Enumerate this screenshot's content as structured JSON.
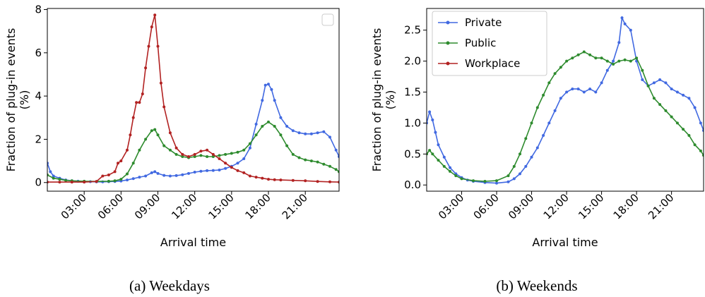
{
  "figure": {
    "captions": [
      "(a) Weekdays",
      "(b) Weekends"
    ]
  },
  "chart_data": [
    {
      "type": "line",
      "panel": "(a) Weekdays",
      "xlabel": "Arrival time",
      "ylabel": "Fraction of plug-in events",
      "ylabel_unit": "(%)",
      "xlim": [
        0,
        23.75
      ],
      "ylim": [
        -0.4,
        8.05
      ],
      "xticks": [
        3,
        6,
        9,
        12,
        15,
        18,
        21
      ],
      "xtick_labels": [
        "03:00",
        "06:00",
        "09:00",
        "12:00",
        "15:00",
        "18:00",
        "21:00"
      ],
      "yticks": [
        0,
        2,
        4,
        6,
        8
      ],
      "ytick_labels": [
        "0",
        "2",
        "4",
        "6",
        "8"
      ],
      "legend": {
        "placement": "top-right",
        "entries": []
      },
      "series": [
        {
          "name": "Private",
          "color": "#4169e1",
          "points": [
            [
              0,
              0.9
            ],
            [
              0.25,
              0.5
            ],
            [
              0.5,
              0.3
            ],
            [
              1,
              0.2
            ],
            [
              1.5,
              0.12
            ],
            [
              2,
              0.08
            ],
            [
              2.5,
              0.06
            ],
            [
              3,
              0.05
            ],
            [
              3.5,
              0.04
            ],
            [
              4,
              0.03
            ],
            [
              4.5,
              0.03
            ],
            [
              5,
              0.04
            ],
            [
              5.5,
              0.05
            ],
            [
              6,
              0.07
            ],
            [
              6.5,
              0.12
            ],
            [
              7,
              0.18
            ],
            [
              7.5,
              0.25
            ],
            [
              8,
              0.3
            ],
            [
              8.5,
              0.45
            ],
            [
              8.75,
              0.5
            ],
            [
              9,
              0.42
            ],
            [
              9.5,
              0.33
            ],
            [
              10,
              0.3
            ],
            [
              10.5,
              0.32
            ],
            [
              11,
              0.36
            ],
            [
              11.5,
              0.42
            ],
            [
              12,
              0.48
            ],
            [
              12.5,
              0.52
            ],
            [
              13,
              0.55
            ],
            [
              13.5,
              0.56
            ],
            [
              14,
              0.58
            ],
            [
              14.5,
              0.65
            ],
            [
              15,
              0.75
            ],
            [
              15.5,
              0.9
            ],
            [
              16,
              1.1
            ],
            [
              16.5,
              1.6
            ],
            [
              17,
              2.7
            ],
            [
              17.5,
              3.8
            ],
            [
              17.75,
              4.5
            ],
            [
              18,
              4.55
            ],
            [
              18.25,
              4.3
            ],
            [
              18.5,
              3.8
            ],
            [
              19,
              3.0
            ],
            [
              19.5,
              2.6
            ],
            [
              20,
              2.4
            ],
            [
              20.5,
              2.3
            ],
            [
              21,
              2.25
            ],
            [
              21.5,
              2.25
            ],
            [
              22,
              2.3
            ],
            [
              22.5,
              2.35
            ],
            [
              23,
              2.1
            ],
            [
              23.5,
              1.5
            ],
            [
              23.75,
              1.2
            ]
          ]
        },
        {
          "name": "Public",
          "color": "#2e8b2e",
          "points": [
            [
              0,
              0.35
            ],
            [
              0.5,
              0.2
            ],
            [
              1,
              0.15
            ],
            [
              1.5,
              0.1
            ],
            [
              2,
              0.08
            ],
            [
              3,
              0.06
            ],
            [
              4,
              0.05
            ],
            [
              5,
              0.06
            ],
            [
              5.5,
              0.08
            ],
            [
              6,
              0.15
            ],
            [
              6.5,
              0.4
            ],
            [
              7,
              0.9
            ],
            [
              7.5,
              1.5
            ],
            [
              8,
              2.0
            ],
            [
              8.5,
              2.4
            ],
            [
              8.75,
              2.45
            ],
            [
              9,
              2.2
            ],
            [
              9.5,
              1.7
            ],
            [
              10,
              1.5
            ],
            [
              10.5,
              1.3
            ],
            [
              11,
              1.2
            ],
            [
              11.5,
              1.15
            ],
            [
              12,
              1.2
            ],
            [
              12.5,
              1.25
            ],
            [
              13,
              1.2
            ],
            [
              13.5,
              1.2
            ],
            [
              14,
              1.25
            ],
            [
              14.5,
              1.3
            ],
            [
              15,
              1.35
            ],
            [
              15.5,
              1.4
            ],
            [
              16,
              1.5
            ],
            [
              16.5,
              1.8
            ],
            [
              17,
              2.2
            ],
            [
              17.5,
              2.6
            ],
            [
              18,
              2.8
            ],
            [
              18.5,
              2.6
            ],
            [
              19,
              2.2
            ],
            [
              19.5,
              1.7
            ],
            [
              20,
              1.3
            ],
            [
              20.5,
              1.15
            ],
            [
              21,
              1.05
            ],
            [
              21.5,
              1.0
            ],
            [
              22,
              0.95
            ],
            [
              22.5,
              0.85
            ],
            [
              23,
              0.75
            ],
            [
              23.5,
              0.6
            ],
            [
              23.75,
              0.5
            ]
          ]
        },
        {
          "name": "Workplace",
          "color": "#b22222",
          "points": [
            [
              0,
              0.02
            ],
            [
              1,
              0.02
            ],
            [
              2,
              0.02
            ],
            [
              3,
              0.02
            ],
            [
              4,
              0.05
            ],
            [
              4.5,
              0.3
            ],
            [
              5,
              0.35
            ],
            [
              5.5,
              0.5
            ],
            [
              5.75,
              0.9
            ],
            [
              6,
              1.0
            ],
            [
              6.5,
              1.5
            ],
            [
              6.75,
              2.2
            ],
            [
              7,
              3.0
            ],
            [
              7.25,
              3.7
            ],
            [
              7.5,
              3.7
            ],
            [
              7.75,
              4.1
            ],
            [
              8,
              5.3
            ],
            [
              8.25,
              6.3
            ],
            [
              8.5,
              7.2
            ],
            [
              8.75,
              7.75
            ],
            [
              9,
              6.3
            ],
            [
              9.25,
              4.6
            ],
            [
              9.5,
              3.5
            ],
            [
              10,
              2.3
            ],
            [
              10.5,
              1.6
            ],
            [
              11,
              1.3
            ],
            [
              11.5,
              1.2
            ],
            [
              12,
              1.3
            ],
            [
              12.5,
              1.45
            ],
            [
              13,
              1.5
            ],
            [
              13.5,
              1.3
            ],
            [
              14,
              1.1
            ],
            [
              14.5,
              0.9
            ],
            [
              15,
              0.7
            ],
            [
              15.5,
              0.55
            ],
            [
              16,
              0.45
            ],
            [
              16.5,
              0.3
            ],
            [
              17,
              0.25
            ],
            [
              17.5,
              0.2
            ],
            [
              18,
              0.15
            ],
            [
              18.5,
              0.13
            ],
            [
              19,
              0.12
            ],
            [
              20,
              0.1
            ],
            [
              21,
              0.08
            ],
            [
              22,
              0.05
            ],
            [
              23,
              0.03
            ],
            [
              23.75,
              0.02
            ]
          ]
        }
      ]
    },
    {
      "type": "line",
      "panel": "(b) Weekends",
      "xlabel": "Arrival time",
      "ylabel": "Fraction of plug-in events",
      "ylabel_unit": "(%)",
      "xlim": [
        0,
        23.75
      ],
      "ylim": [
        -0.1,
        2.85
      ],
      "xticks": [
        3,
        6,
        9,
        12,
        15,
        18,
        21
      ],
      "xtick_labels": [
        "03:00",
        "06:00",
        "09:00",
        "12:00",
        "15:00",
        "18:00",
        "21:00"
      ],
      "yticks": [
        0,
        0.5,
        1,
        1.5,
        2,
        2.5
      ],
      "ytick_labels": [
        "0.0",
        "0.5",
        "1.0",
        "1.5",
        "2.0",
        "2.5"
      ],
      "legend": {
        "placement": "top-left",
        "entries": [
          "Private",
          "Public",
          "Workplace"
        ]
      },
      "series": [
        {
          "name": "Private",
          "color": "#4169e1",
          "points": [
            [
              0,
              1.0
            ],
            [
              0.25,
              1.18
            ],
            [
              0.5,
              1.05
            ],
            [
              0.75,
              0.85
            ],
            [
              1,
              0.65
            ],
            [
              1.5,
              0.45
            ],
            [
              2,
              0.28
            ],
            [
              2.5,
              0.18
            ],
            [
              3,
              0.12
            ],
            [
              3.5,
              0.08
            ],
            [
              4,
              0.06
            ],
            [
              5,
              0.04
            ],
            [
              6,
              0.03
            ],
            [
              7,
              0.05
            ],
            [
              7.5,
              0.1
            ],
            [
              8,
              0.18
            ],
            [
              8.5,
              0.3
            ],
            [
              9,
              0.45
            ],
            [
              9.5,
              0.6
            ],
            [
              10,
              0.8
            ],
            [
              10.5,
              1.0
            ],
            [
              11,
              1.2
            ],
            [
              11.5,
              1.4
            ],
            [
              12,
              1.5
            ],
            [
              12.5,
              1.55
            ],
            [
              13,
              1.55
            ],
            [
              13.5,
              1.5
            ],
            [
              14,
              1.55
            ],
            [
              14.5,
              1.5
            ],
            [
              15,
              1.65
            ],
            [
              15.5,
              1.85
            ],
            [
              16,
              2.0
            ],
            [
              16.5,
              2.3
            ],
            [
              16.75,
              2.7
            ],
            [
              17,
              2.6
            ],
            [
              17.5,
              2.5
            ],
            [
              18,
              2.0
            ],
            [
              18.5,
              1.7
            ],
            [
              19,
              1.6
            ],
            [
              19.5,
              1.65
            ],
            [
              20,
              1.7
            ],
            [
              20.5,
              1.65
            ],
            [
              21,
              1.55
            ],
            [
              21.5,
              1.5
            ],
            [
              22,
              1.45
            ],
            [
              22.5,
              1.4
            ],
            [
              23,
              1.25
            ],
            [
              23.5,
              1.0
            ],
            [
              23.75,
              0.88
            ]
          ]
        },
        {
          "name": "Public",
          "color": "#2e8b2e",
          "points": [
            [
              0,
              0.5
            ],
            [
              0.25,
              0.56
            ],
            [
              0.5,
              0.5
            ],
            [
              1,
              0.4
            ],
            [
              1.5,
              0.3
            ],
            [
              2,
              0.22
            ],
            [
              2.5,
              0.15
            ],
            [
              3,
              0.1
            ],
            [
              4,
              0.07
            ],
            [
              5,
              0.06
            ],
            [
              6,
              0.07
            ],
            [
              7,
              0.15
            ],
            [
              7.5,
              0.3
            ],
            [
              8,
              0.5
            ],
            [
              8.5,
              0.75
            ],
            [
              9,
              1.0
            ],
            [
              9.5,
              1.25
            ],
            [
              10,
              1.45
            ],
            [
              10.5,
              1.65
            ],
            [
              11,
              1.8
            ],
            [
              11.5,
              1.9
            ],
            [
              12,
              2.0
            ],
            [
              12.5,
              2.05
            ],
            [
              13,
              2.1
            ],
            [
              13.5,
              2.15
            ],
            [
              14,
              2.1
            ],
            [
              14.5,
              2.05
            ],
            [
              15,
              2.05
            ],
            [
              15.5,
              2.0
            ],
            [
              16,
              1.95
            ],
            [
              16.5,
              2.0
            ],
            [
              17,
              2.02
            ],
            [
              17.5,
              2.0
            ],
            [
              18,
              2.05
            ],
            [
              18.5,
              1.85
            ],
            [
              19,
              1.6
            ],
            [
              19.5,
              1.4
            ],
            [
              20,
              1.3
            ],
            [
              20.5,
              1.2
            ],
            [
              21,
              1.1
            ],
            [
              21.5,
              1.0
            ],
            [
              22,
              0.9
            ],
            [
              22.5,
              0.8
            ],
            [
              23,
              0.65
            ],
            [
              23.5,
              0.55
            ],
            [
              23.75,
              0.48
            ]
          ]
        },
        {
          "name": "Workplace",
          "color": "#b22222",
          "points": []
        }
      ]
    }
  ]
}
